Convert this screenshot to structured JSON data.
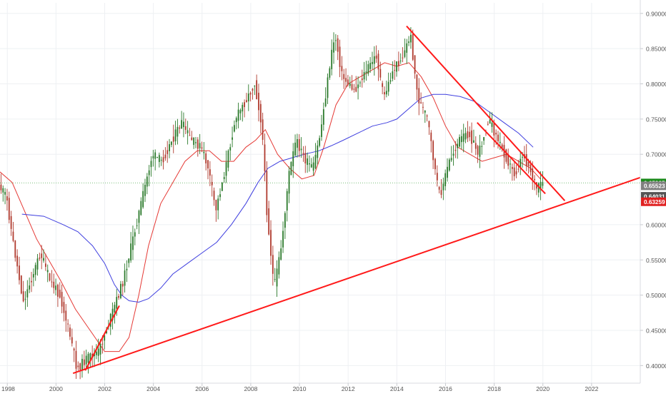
{
  "chart_data": {
    "type": "candlestick",
    "xlim": [
      1997.7,
      2024.0
    ],
    "ylim": [
      0.375,
      0.915
    ],
    "x_ticks": [
      {
        "x": 1998,
        "label": "1998"
      },
      {
        "x": 2000,
        "label": "2000"
      },
      {
        "x": 2002,
        "label": "2002"
      },
      {
        "x": 2004,
        "label": "2004"
      },
      {
        "x": 2006,
        "label": "2006"
      },
      {
        "x": 2008,
        "label": "2008"
      },
      {
        "x": 2010,
        "label": "2010"
      },
      {
        "x": 2012,
        "label": "2012"
      },
      {
        "x": 2014,
        "label": "2014"
      },
      {
        "x": 2016,
        "label": "2016"
      },
      {
        "x": 2018,
        "label": "2018"
      },
      {
        "x": 2020,
        "label": "2020"
      },
      {
        "x": 2022,
        "label": "2022"
      }
    ],
    "y_ticks": [
      {
        "y": 0.9,
        "label": "0.90000"
      },
      {
        "y": 0.85,
        "label": "0.85000"
      },
      {
        "y": 0.8,
        "label": "0.80000"
      },
      {
        "y": 0.75,
        "label": "0.75000"
      },
      {
        "y": 0.7,
        "label": "0.70000"
      },
      {
        "y": 0.6,
        "label": "0.60000"
      },
      {
        "y": 0.55,
        "label": "0.55000"
      },
      {
        "y": 0.5,
        "label": "0.50000"
      },
      {
        "y": 0.45,
        "label": "0.45000"
      },
      {
        "y": 0.4,
        "label": "0.40000"
      }
    ],
    "grid": true,
    "price_path": [
      [
        1997.7,
        0.655
      ],
      [
        1998.0,
        0.64
      ],
      [
        1998.3,
        0.57
      ],
      [
        1998.7,
        0.49
      ],
      [
        1999.0,
        0.52
      ],
      [
        1999.4,
        0.56
      ],
      [
        1999.8,
        0.52
      ],
      [
        2000.2,
        0.5
      ],
      [
        2000.7,
        0.43
      ],
      [
        2000.9,
        0.395
      ],
      [
        2001.3,
        0.41
      ],
      [
        2001.8,
        0.42
      ],
      [
        2002.3,
        0.47
      ],
      [
        2002.8,
        0.52
      ],
      [
        2003.2,
        0.58
      ],
      [
        2003.6,
        0.64
      ],
      [
        2004.0,
        0.7
      ],
      [
        2004.4,
        0.69
      ],
      [
        2004.8,
        0.72
      ],
      [
        2005.2,
        0.745
      ],
      [
        2005.6,
        0.72
      ],
      [
        2006.0,
        0.71
      ],
      [
        2006.3,
        0.68
      ],
      [
        2006.6,
        0.62
      ],
      [
        2007.0,
        0.68
      ],
      [
        2007.4,
        0.75
      ],
      [
        2007.9,
        0.78
      ],
      [
        2008.2,
        0.8
      ],
      [
        2008.5,
        0.74
      ],
      [
        2008.7,
        0.62
      ],
      [
        2009.0,
        0.51
      ],
      [
        2009.3,
        0.57
      ],
      [
        2009.6,
        0.67
      ],
      [
        2009.9,
        0.72
      ],
      [
        2010.3,
        0.69
      ],
      [
        2010.6,
        0.68
      ],
      [
        2010.9,
        0.73
      ],
      [
        2011.3,
        0.83
      ],
      [
        2011.5,
        0.87
      ],
      [
        2011.8,
        0.81
      ],
      [
        2012.3,
        0.79
      ],
      [
        2012.8,
        0.82
      ],
      [
        2013.2,
        0.84
      ],
      [
        2013.5,
        0.78
      ],
      [
        2013.9,
        0.82
      ],
      [
        2014.3,
        0.84
      ],
      [
        2014.6,
        0.87
      ],
      [
        2014.9,
        0.78
      ],
      [
        2015.3,
        0.75
      ],
      [
        2015.6,
        0.68
      ],
      [
        2015.8,
        0.64
      ],
      [
        2016.2,
        0.69
      ],
      [
        2016.6,
        0.72
      ],
      [
        2017.0,
        0.73
      ],
      [
        2017.4,
        0.7
      ],
      [
        2017.8,
        0.75
      ],
      [
        2018.2,
        0.72
      ],
      [
        2018.6,
        0.69
      ],
      [
        2018.9,
        0.67
      ],
      [
        2019.2,
        0.7
      ],
      [
        2019.5,
        0.68
      ],
      [
        2019.8,
        0.65
      ],
      [
        2020.0,
        0.659
      ]
    ],
    "moving_averages": [
      {
        "color": "#e53935",
        "points": [
          [
            1997.7,
            0.675
          ],
          [
            1998.2,
            0.66
          ],
          [
            1998.7,
            0.62
          ],
          [
            1999.2,
            0.58
          ],
          [
            1999.7,
            0.55
          ],
          [
            2000.2,
            0.52
          ],
          [
            2000.8,
            0.48
          ],
          [
            2001.4,
            0.45
          ],
          [
            2002.0,
            0.42
          ],
          [
            2002.6,
            0.42
          ],
          [
            2003.0,
            0.44
          ],
          [
            2003.4,
            0.5
          ],
          [
            2003.8,
            0.57
          ],
          [
            2004.3,
            0.63
          ],
          [
            2004.8,
            0.66
          ],
          [
            2005.3,
            0.69
          ],
          [
            2005.8,
            0.705
          ],
          [
            2006.3,
            0.705
          ],
          [
            2006.8,
            0.69
          ],
          [
            2007.3,
            0.69
          ],
          [
            2007.8,
            0.71
          ],
          [
            2008.2,
            0.72
          ],
          [
            2008.6,
            0.735
          ],
          [
            2009.1,
            0.7
          ],
          [
            2009.6,
            0.68
          ],
          [
            2010.1,
            0.665
          ],
          [
            2010.6,
            0.67
          ],
          [
            2011.0,
            0.71
          ],
          [
            2011.5,
            0.77
          ],
          [
            2012.0,
            0.8
          ],
          [
            2012.5,
            0.81
          ],
          [
            2013.0,
            0.82
          ],
          [
            2013.5,
            0.83
          ],
          [
            2014.0,
            0.825
          ],
          [
            2014.5,
            0.83
          ],
          [
            2015.0,
            0.81
          ],
          [
            2015.5,
            0.78
          ],
          [
            2016.0,
            0.74
          ],
          [
            2016.5,
            0.71
          ],
          [
            2017.0,
            0.7
          ],
          [
            2017.5,
            0.69
          ],
          [
            2018.0,
            0.695
          ],
          [
            2018.5,
            0.7
          ],
          [
            2019.0,
            0.69
          ],
          [
            2019.5,
            0.68
          ],
          [
            2019.9,
            0.665
          ]
        ]
      },
      {
        "color": "#3f3fdf",
        "points": [
          [
            1998.6,
            0.615
          ],
          [
            1999.5,
            0.612
          ],
          [
            2000.3,
            0.6
          ],
          [
            2000.9,
            0.59
          ],
          [
            2001.5,
            0.57
          ],
          [
            2002.0,
            0.545
          ],
          [
            2002.4,
            0.515
          ],
          [
            2002.7,
            0.5
          ],
          [
            2003.0,
            0.492
          ],
          [
            2003.4,
            0.49
          ],
          [
            2003.8,
            0.495
          ],
          [
            2004.3,
            0.51
          ],
          [
            2004.8,
            0.53
          ],
          [
            2005.4,
            0.545
          ],
          [
            2006.0,
            0.56
          ],
          [
            2006.6,
            0.575
          ],
          [
            2007.2,
            0.6
          ],
          [
            2007.8,
            0.63
          ],
          [
            2008.3,
            0.66
          ],
          [
            2008.7,
            0.68
          ],
          [
            2009.2,
            0.69
          ],
          [
            2009.7,
            0.695
          ],
          [
            2010.2,
            0.7
          ],
          [
            2010.8,
            0.705
          ],
          [
            2011.3,
            0.712
          ],
          [
            2011.8,
            0.72
          ],
          [
            2012.4,
            0.73
          ],
          [
            2013.0,
            0.74
          ],
          [
            2013.6,
            0.745
          ],
          [
            2014.0,
            0.75
          ],
          [
            2014.5,
            0.765
          ],
          [
            2015.0,
            0.78
          ],
          [
            2015.5,
            0.785
          ],
          [
            2016.0,
            0.785
          ],
          [
            2016.6,
            0.782
          ],
          [
            2017.2,
            0.775
          ],
          [
            2017.8,
            0.76
          ],
          [
            2018.4,
            0.745
          ],
          [
            2019.0,
            0.73
          ],
          [
            2019.6,
            0.71
          ]
        ]
      }
    ],
    "trendlines": [
      {
        "color": "#ff1a1a",
        "from": [
          2000.7,
          0.389
        ],
        "to": [
          2024.0,
          0.667
        ]
      },
      {
        "color": "#ff1a1a",
        "from": [
          2014.4,
          0.882
        ],
        "to": [
          2020.9,
          0.634
        ]
      },
      {
        "color": "#ff1a1a",
        "from": [
          2017.3,
          0.745
        ],
        "to": [
          2020.1,
          0.644
        ]
      },
      {
        "color": "#ff1a1a",
        "from": [
          2001.2,
          0.393
        ],
        "to": [
          2002.6,
          0.485
        ]
      }
    ],
    "price_labels": [
      {
        "label": "0.65925",
        "value": 0.65925,
        "color": "#1b8a1b"
      },
      {
        "label": "0.65523",
        "value": 0.65523,
        "color": "#808080"
      },
      {
        "label": "0.64031",
        "value": 0.64031,
        "color": "#545454"
      },
      {
        "label": "0.63259",
        "value": 0.63259,
        "color": "#e02020"
      }
    ],
    "current_price_line": 0.65925,
    "colors": {
      "up": "#2b7a2b",
      "down": "#b03a2e",
      "grid": "#eef0f3",
      "axis_text": "#555555",
      "current_line": "#7cbf7c"
    }
  }
}
